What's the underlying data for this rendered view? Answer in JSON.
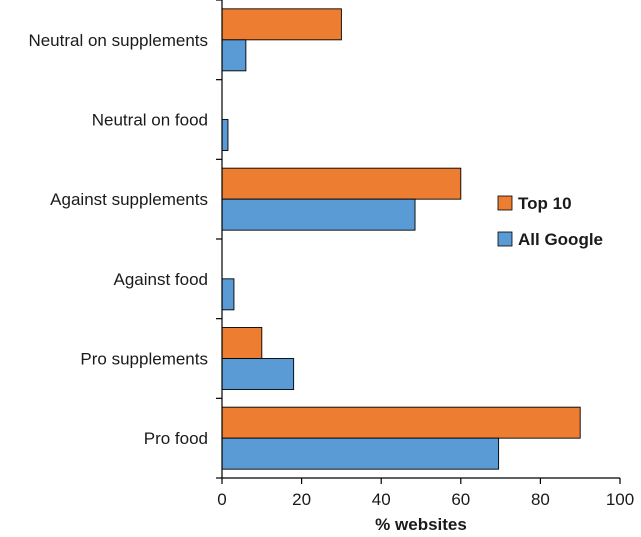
{
  "chart_data": {
    "type": "bar",
    "orientation": "horizontal",
    "title": "",
    "xlabel": "% websites",
    "ylabel": "",
    "xlim": [
      0,
      100
    ],
    "xticks": [
      0,
      20,
      40,
      60,
      80,
      100
    ],
    "categories": [
      "Neutral on supplements",
      "Neutral on food",
      "Against supplements",
      "Against food",
      "Pro supplements",
      "Pro food"
    ],
    "series": [
      {
        "name": "Top 10",
        "color": "#ED7D31",
        "values": [
          30,
          0,
          60,
          0,
          10,
          90
        ]
      },
      {
        "name": "All Google",
        "color": "#5B9BD5",
        "values": [
          6,
          1.5,
          48.5,
          3,
          18,
          69.5
        ]
      }
    ],
    "legend_position": "right",
    "grid": false
  }
}
